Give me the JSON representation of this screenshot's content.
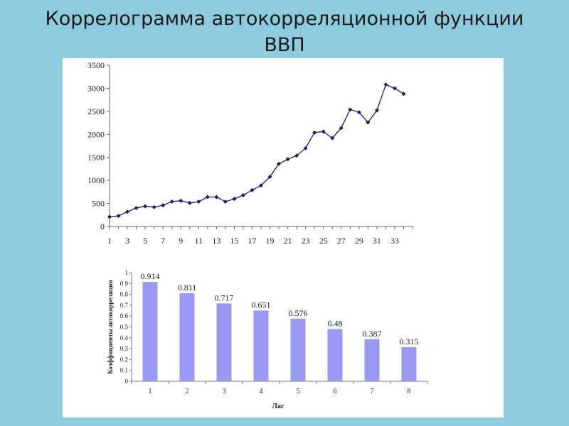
{
  "slide": {
    "title": "Коррелограмма автокорреляционной функции\nВВП"
  },
  "chart_data": [
    {
      "type": "line",
      "title": "",
      "xlabel": "",
      "ylabel": "",
      "ylim": [
        0,
        3500
      ],
      "y_ticks": [
        0,
        500,
        1000,
        1500,
        2000,
        2500,
        3000,
        3500
      ],
      "x_tick_labels": [
        "1",
        "3",
        "5",
        "7",
        "9",
        "11",
        "13",
        "15",
        "17",
        "19",
        "21",
        "23",
        "25",
        "27",
        "29",
        "31",
        "33"
      ],
      "grid": false,
      "legend": "none",
      "marker": "diamond",
      "color": "#1c1c6e",
      "x": [
        1,
        2,
        3,
        4,
        5,
        6,
        7,
        8,
        9,
        10,
        11,
        12,
        13,
        14,
        15,
        16,
        17,
        18,
        19,
        20,
        21,
        22,
        23,
        24,
        25,
        26,
        27,
        28,
        29,
        30,
        31,
        32,
        33,
        34
      ],
      "values": [
        210,
        230,
        320,
        400,
        440,
        420,
        460,
        540,
        560,
        510,
        540,
        640,
        640,
        540,
        600,
        680,
        790,
        890,
        1080,
        1360,
        1460,
        1540,
        1700,
        2040,
        2060,
        1920,
        2140,
        2540,
        2480,
        2260,
        2520,
        3080,
        3000,
        2880
      ]
    },
    {
      "type": "bar",
      "title": "",
      "xlabel": "Лаг",
      "ylabel": "Коэффициенты автокорреляции",
      "ylim": [
        0,
        1
      ],
      "y_ticks": [
        "0",
        "0.1",
        "0.2",
        "0.3",
        "0.4",
        "0.5",
        "0.6",
        "0.7",
        "0.8",
        "0.9",
        "1"
      ],
      "grid": false,
      "legend": "none",
      "color": "#9999f2",
      "categories": [
        "1",
        "2",
        "3",
        "4",
        "5",
        "6",
        "7",
        "8"
      ],
      "values": [
        0.914,
        0.811,
        0.717,
        0.651,
        0.576,
        0.48,
        0.387,
        0.315
      ],
      "data_labels": [
        "0.914",
        "0.811",
        "0.717",
        "0.651",
        "0.576",
        "0.48",
        "0.387",
        "0.315"
      ]
    }
  ]
}
